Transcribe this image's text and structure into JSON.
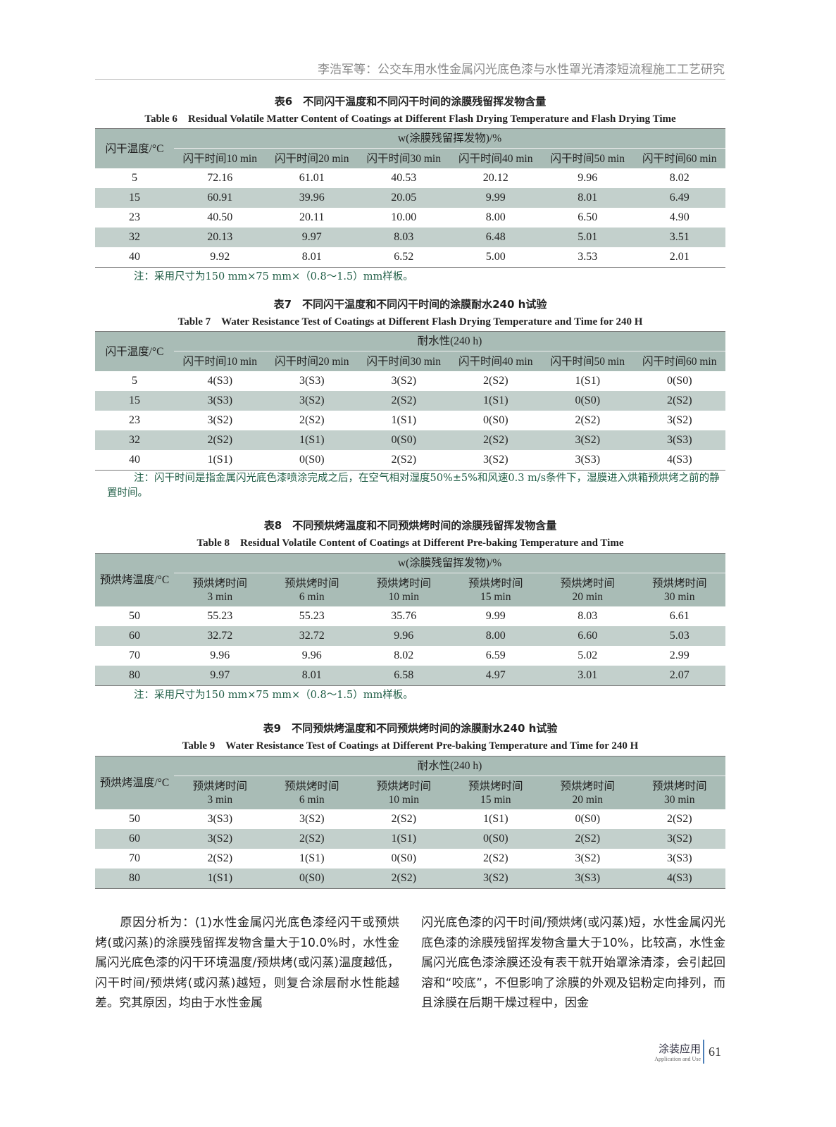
{
  "running_header": "李浩军等：公交车用水性金属闪光底色漆与水性罩光清漆短流程施工工艺研究",
  "tables": [
    {
      "title_zh": "表6　不同闪干温度和不同闪干时间的涂膜残留挥发物含量",
      "title_en": "Table 6　Residual Volatile Matter Content of Coatings at Different Flash Drying Temperature and Flash Drying Time",
      "row_header": "闪干温度/°C",
      "group_header": "w(涂膜残留挥发物)/%",
      "columns": [
        "闪干时间10 min",
        "闪干时间20 min",
        "闪干时间30 min",
        "闪干时间40 min",
        "闪干时间50 min",
        "闪干时间60 min"
      ],
      "rows": [
        [
          "5",
          "72.16",
          "61.01",
          "40.53",
          "20.12",
          "9.96",
          "8.02"
        ],
        [
          "15",
          "60.91",
          "39.96",
          "20.05",
          "9.99",
          "8.01",
          "6.49"
        ],
        [
          "23",
          "40.50",
          "20.11",
          "10.00",
          "8.00",
          "6.50",
          "4.90"
        ],
        [
          "32",
          "20.13",
          "9.97",
          "8.03",
          "6.48",
          "5.01",
          "3.51"
        ],
        [
          "40",
          "9.92",
          "8.01",
          "6.52",
          "5.00",
          "3.53",
          "2.01"
        ]
      ],
      "note": "注：采用尺寸为150 mm×75 mm×（0.8～1.5）mm样板。"
    },
    {
      "title_zh": "表7　不同闪干温度和不同闪干时间的涂膜耐水240 h试验",
      "title_en": "Table 7　Water Resistance Test of Coatings at Different Flash Drying Temperature and Time for 240 H",
      "row_header": "闪干温度/°C",
      "group_header": "耐水性(240 h)",
      "columns": [
        "闪干时间10 min",
        "闪干时间20 min",
        "闪干时间30 min",
        "闪干时间40 min",
        "闪干时间50 min",
        "闪干时间60 min"
      ],
      "rows": [
        [
          "5",
          "4(S3)",
          "3(S3)",
          "3(S2)",
          "2(S2)",
          "1(S1)",
          "0(S0)"
        ],
        [
          "15",
          "3(S3)",
          "3(S2)",
          "2(S2)",
          "1(S1)",
          "0(S0)",
          "2(S2)"
        ],
        [
          "23",
          "3(S2)",
          "2(S2)",
          "1(S1)",
          "0(S0)",
          "2(S2)",
          "3(S2)"
        ],
        [
          "32",
          "2(S2)",
          "1(S1)",
          "0(S0)",
          "2(S2)",
          "3(S2)",
          "3(S3)"
        ],
        [
          "40",
          "1(S1)",
          "0(S0)",
          "2(S2)",
          "3(S2)",
          "3(S3)",
          "4(S3)"
        ]
      ],
      "note": "注：闪干时间是指金属闪光底色漆喷涂完成之后，在空气相对湿度50%±5%和风速0.3 m/s条件下，湿膜进入烘箱预烘烤之前的静置时间。"
    },
    {
      "title_zh": "表8　不同预烘烤温度和不同预烘烤时间的涂膜残留挥发物含量",
      "title_en": "Table 8　Residual Volatile Content of Coatings at Different Pre-baking Temperature and Time",
      "row_header": "预烘烤温度/°C",
      "group_header": "w(涂膜残留挥发物)/%",
      "columns": [
        "预烘烤时间\n3 min",
        "预烘烤时间\n6 min",
        "预烘烤时间\n10 min",
        "预烘烤时间\n15 min",
        "预烘烤时间\n20 min",
        "预烘烤时间\n30 min"
      ],
      "rows": [
        [
          "50",
          "55.23",
          "55.23",
          "35.76",
          "9.99",
          "8.03",
          "6.61"
        ],
        [
          "60",
          "32.72",
          "32.72",
          "9.96",
          "8.00",
          "6.60",
          "5.03"
        ],
        [
          "70",
          "9.96",
          "9.96",
          "8.02",
          "6.59",
          "5.02",
          "2.99"
        ],
        [
          "80",
          "9.97",
          "8.01",
          "6.58",
          "4.97",
          "3.01",
          "2.07"
        ]
      ],
      "note": "注：采用尺寸为150 mm×75 mm×（0.8～1.5）mm样板。"
    },
    {
      "title_zh": "表9　不同预烘烤温度和不同预烘烤时间的涂膜耐水240 h试验",
      "title_en": "Table 9　Water Resistance Test of Coatings at Different Pre-baking Temperature and Time for 240 H",
      "row_header": "预烘烤温度/°C",
      "group_header": "耐水性(240 h)",
      "columns": [
        "预烘烤时间\n3 min",
        "预烘烤时间\n6 min",
        "预烘烤时间\n10 min",
        "预烘烤时间\n15 min",
        "预烘烤时间\n20 min",
        "预烘烤时间\n30 min"
      ],
      "rows": [
        [
          "50",
          "3(S3)",
          "3(S2)",
          "2(S2)",
          "1(S1)",
          "0(S0)",
          "2(S2)"
        ],
        [
          "60",
          "3(S2)",
          "2(S2)",
          "1(S1)",
          "0(S0)",
          "2(S2)",
          "3(S2)"
        ],
        [
          "70",
          "2(S2)",
          "1(S1)",
          "0(S0)",
          "2(S2)",
          "3(S2)",
          "3(S3)"
        ],
        [
          "80",
          "1(S1)",
          "0(S0)",
          "2(S2)",
          "3(S2)",
          "3(S3)",
          "4(S3)"
        ]
      ],
      "note": ""
    }
  ],
  "body_left": "　　原因分析为：(1)水性金属闪光底色漆经闪干或预烘烤(或闪蒸)的涂膜残留挥发物含量大于10.0%时，水性金属闪光底色漆的闪干环境温度/预烘烤(或闪蒸)温度越低，闪干时间/预烘烤(或闪蒸)越短，则复合涂层耐水性能越差。究其原因，均由于水性金属",
  "body_right": "闪光底色漆的闪干时间/预烘烤(或闪蒸)短，水性金属闪光底色漆的涂膜残留挥发物含量大于10%，比较高，水性金属闪光底色漆涂膜还没有表干就开始罩涂清漆，会引起回溶和“咬底”，不但影响了涂膜的外观及铝粉定向排列，而且涂膜在后期干燥过程中，因金",
  "footer": {
    "journal_zh": "涂装应用",
    "journal_en": "Application and Use",
    "page": "61"
  },
  "colors": {
    "header_fill": "#a9bcb6",
    "alt_row_fill": "#c3d0cc",
    "note_text": "#1f5d45"
  }
}
